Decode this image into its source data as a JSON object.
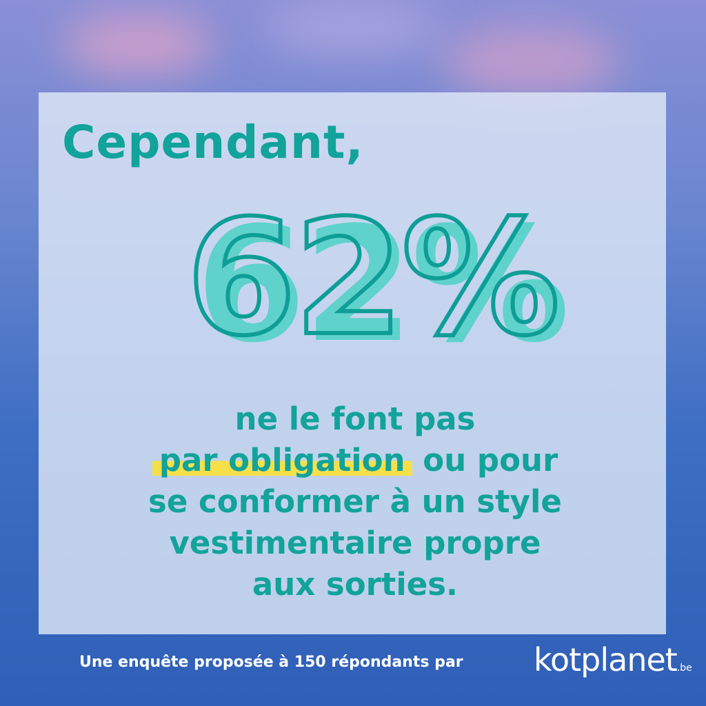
{
  "heading": "Cependant,",
  "stat": "62%",
  "body": {
    "line1": "ne le font pas",
    "line2_highlight": "par obligation",
    "line2_rest": " ou pour",
    "line3": "se conformer à un style",
    "line4": "vestimentaire propre",
    "line5": "aux sorties."
  },
  "footer": "Une enquête proposée à 150 répondants par",
  "logo": {
    "name": "kotplanet",
    "tld": ".be"
  },
  "colors": {
    "accent": "#12a39a",
    "highlight": "#f5e04a",
    "card": "#dee8f6",
    "background": "#3f6fc4"
  }
}
